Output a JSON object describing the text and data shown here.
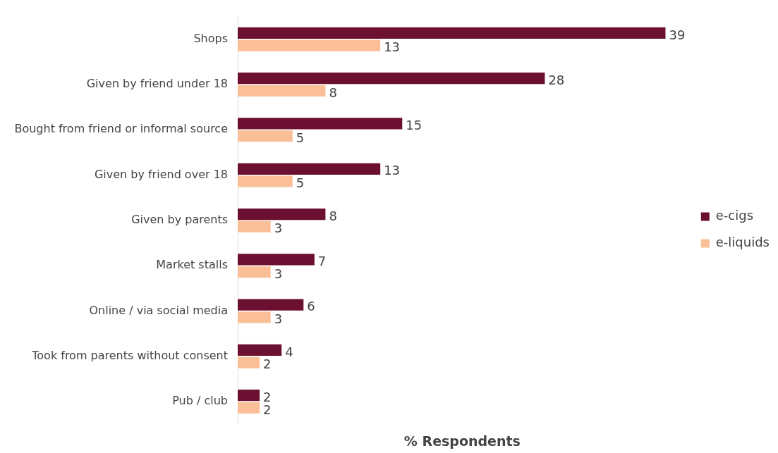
{
  "chart_data": {
    "type": "bar",
    "orientation": "horizontal",
    "xlabel": "% Respondents",
    "categories": [
      "Shops",
      "Given by friend under 18",
      "Bought from friend or informal source",
      "Given by friend over 18",
      "Given by parents",
      "Market stalls",
      "Online / via social media",
      "Took from parents without consent",
      "Pub / club"
    ],
    "series": [
      {
        "name": "e-cigs",
        "color": "#6b1030",
        "values": [
          39,
          28,
          15,
          13,
          8,
          7,
          6,
          4,
          2
        ]
      },
      {
        "name": "e-liquids",
        "color": "#fbbf98",
        "values": [
          13,
          8,
          5,
          5,
          3,
          3,
          3,
          2,
          2
        ]
      }
    ],
    "data_labels": true,
    "legend": "right",
    "grid": false,
    "tick_labels": "y"
  }
}
